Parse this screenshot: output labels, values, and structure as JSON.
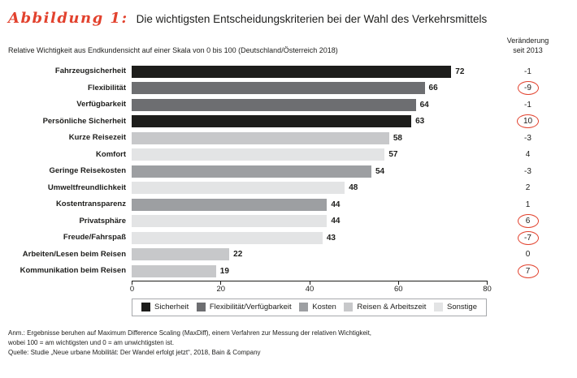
{
  "accent_red": "#e2422e",
  "header": {
    "figure_label": "Abbildung 1:",
    "title": "Die wichtigsten Entscheidungskriterien bei der Wahl des Verkehrsmittels",
    "subtitle": "Relative Wichtigkeit aus Endkundensicht auf einer Skala von 0 bis 100 (Deutschland/Österreich 2018)",
    "change_column_header": "Veränderung\nseit 2013"
  },
  "chart_data": {
    "type": "bar",
    "orientation": "horizontal",
    "title": "Die wichtigsten Entscheidungskriterien bei der Wahl des Verkehrsmittels",
    "xlabel": "",
    "ylabel": "",
    "xlim": [
      0,
      80
    ],
    "xticks": [
      0,
      20,
      40,
      60,
      80
    ],
    "legend_position": "bottom",
    "rows": [
      {
        "label": "Fahrzeugsicherheit",
        "value": 72,
        "change": "-1",
        "circled": false,
        "category": "sicherheit"
      },
      {
        "label": "Flexibilität",
        "value": 66,
        "change": "-9",
        "circled": true,
        "category": "flex"
      },
      {
        "label": "Verfügbarkeit",
        "value": 64,
        "change": "-1",
        "circled": false,
        "category": "flex"
      },
      {
        "label": "Persönliche Sicherheit",
        "value": 63,
        "change": "10",
        "circled": true,
        "category": "sicherheit"
      },
      {
        "label": "Kurze Reisezeit",
        "value": 58,
        "change": "-3",
        "circled": false,
        "category": "reisen"
      },
      {
        "label": "Komfort",
        "value": 57,
        "change": "4",
        "circled": false,
        "category": "sonstige"
      },
      {
        "label": "Geringe Reisekosten",
        "value": 54,
        "change": "-3",
        "circled": false,
        "category": "kosten"
      },
      {
        "label": "Umweltfreundlichkeit",
        "value": 48,
        "change": "2",
        "circled": false,
        "category": "sonstige"
      },
      {
        "label": "Kostentransparenz",
        "value": 44,
        "change": "1",
        "circled": false,
        "category": "kosten"
      },
      {
        "label": "Privatsphäre",
        "value": 44,
        "change": "6",
        "circled": true,
        "category": "sonstige"
      },
      {
        "label": "Freude/Fahrspaß",
        "value": 43,
        "change": "-7",
        "circled": true,
        "category": "sonstige"
      },
      {
        "label": "Arbeiten/Lesen beim Reisen",
        "value": 22,
        "change": "0",
        "circled": false,
        "category": "reisen"
      },
      {
        "label": "Kommunikation beim Reisen",
        "value": 19,
        "change": "7",
        "circled": true,
        "category": "reisen"
      }
    ],
    "legend": [
      {
        "key": "sicherheit",
        "label": "Sicherheit",
        "color": "#1d1d1b"
      },
      {
        "key": "flex",
        "label": "Flexibilität/Verfügbarkeit",
        "color": "#6d6e71"
      },
      {
        "key": "kosten",
        "label": "Kosten",
        "color": "#9d9fa2"
      },
      {
        "key": "reisen",
        "label": "Reisen & Arbeitszeit",
        "color": "#c7c8ca"
      },
      {
        "key": "sonstige",
        "label": "Sonstige",
        "color": "#e3e4e5"
      }
    ]
  },
  "footer": {
    "note1": "Anm.: Ergebnisse beruhen auf Maximum Difference Scaling (MaxDiff), einem Verfahren zur Messung der relativen Wichtigkeit,",
    "note2": "wobei 100 = am wichtigsten und 0 = am unwichtigsten ist.",
    "source": "Quelle: Studie „Neue urbane Mobilität: Der Wandel erfolgt jetzt“, 2018, Bain & Company"
  }
}
